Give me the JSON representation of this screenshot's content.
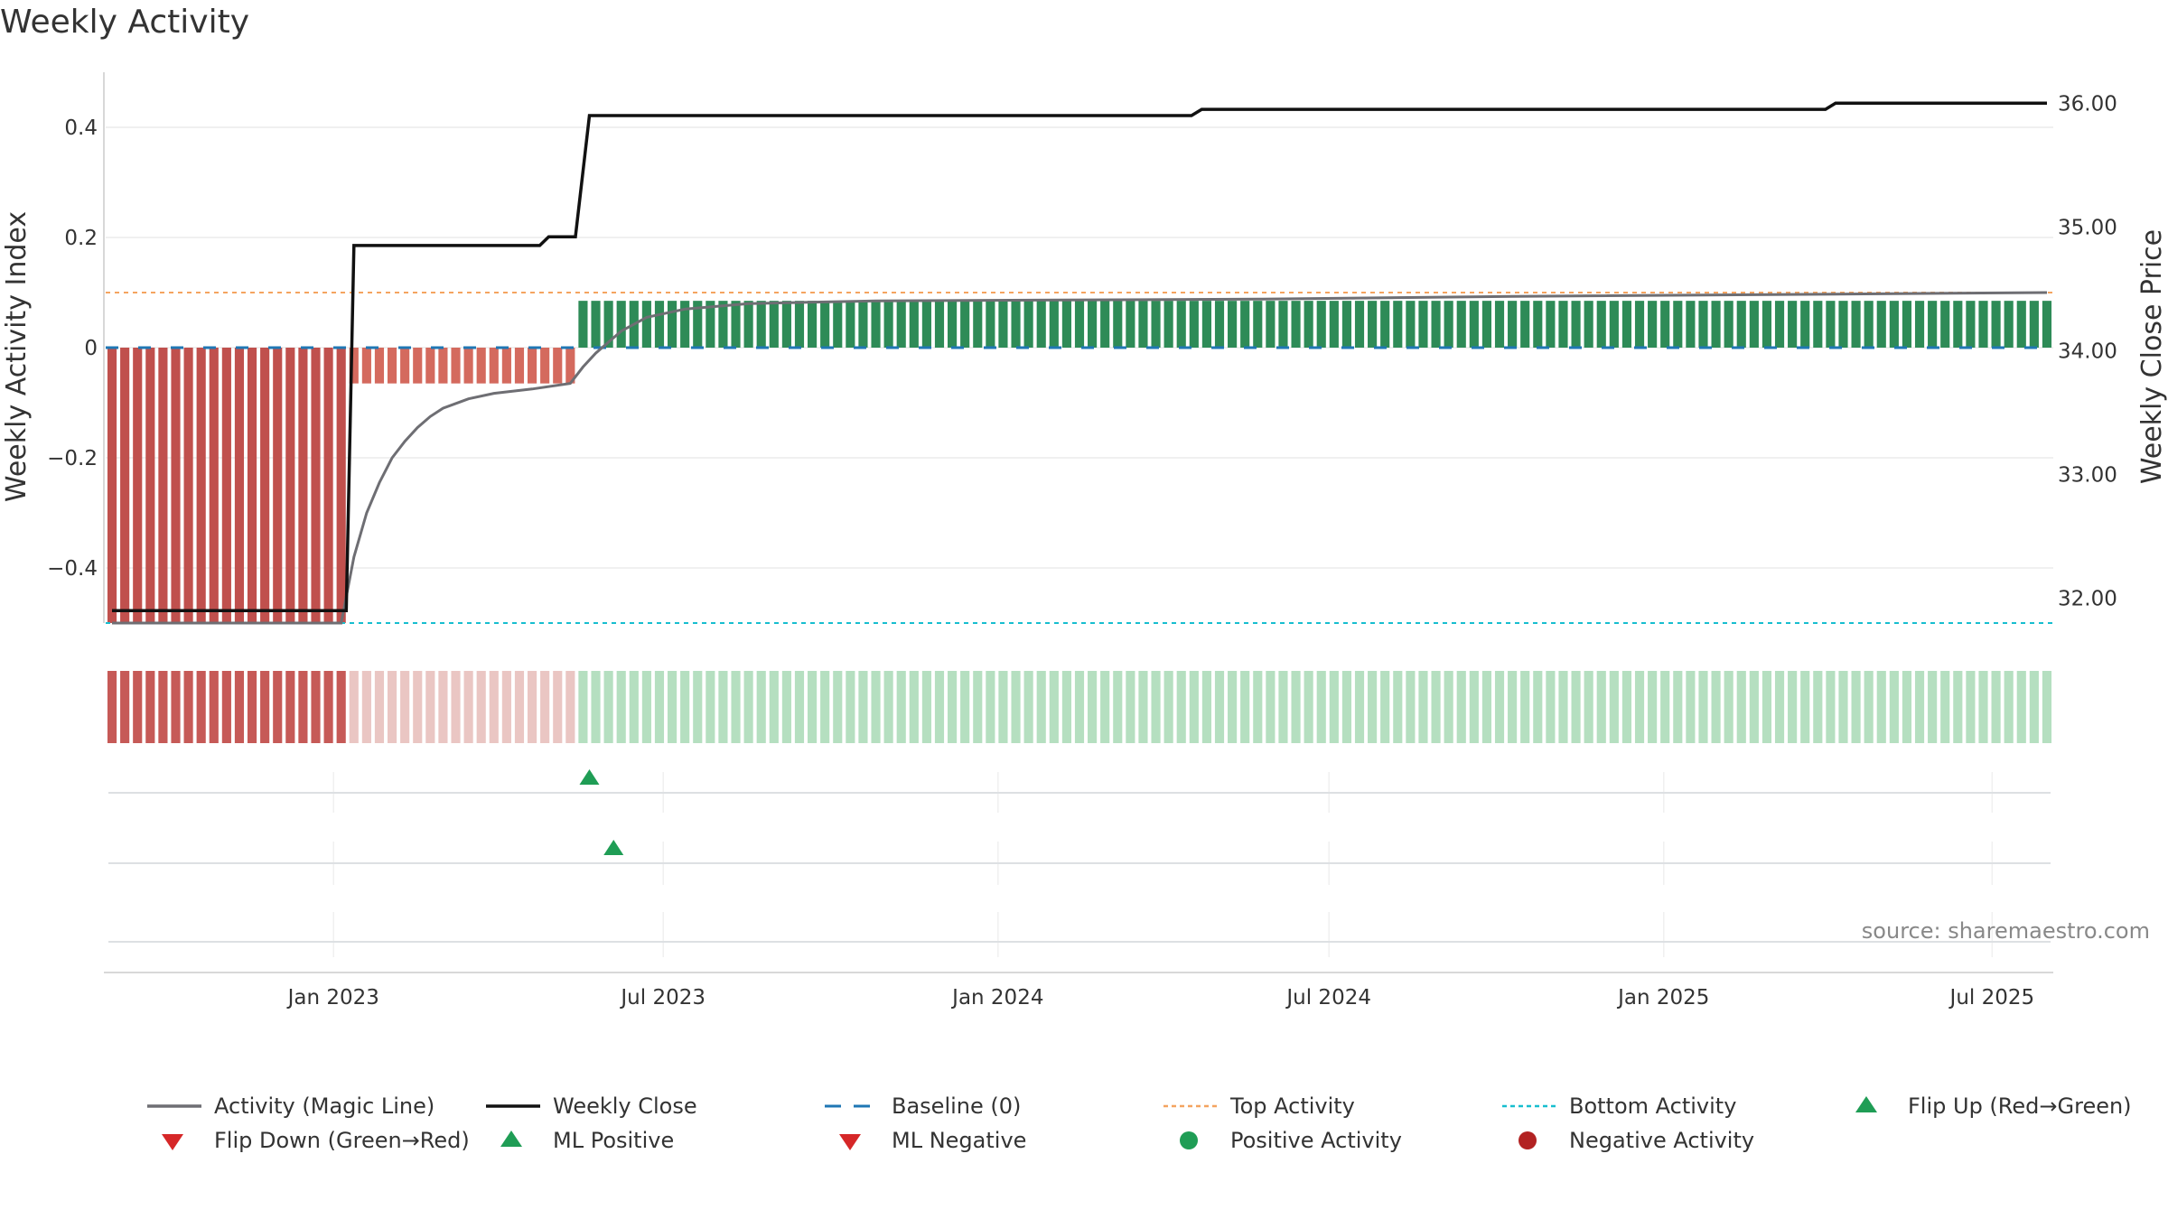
{
  "chart_data": {
    "type": "bar+line",
    "title": "Weekly Activity",
    "ylabel_left": "Weekly Activity Index",
    "ylabel_right": "Weekly Close Price",
    "left_ylim": [
      -0.5,
      0.5
    ],
    "left_ticks": [
      {
        "value": 0.4,
        "label": "0.4"
      },
      {
        "value": 0.2,
        "label": "0.2"
      },
      {
        "value": 0,
        "label": "0"
      },
      {
        "value": -0.2,
        "label": "−0.2"
      },
      {
        "value": -0.4,
        "label": "−0.4"
      }
    ],
    "right_ylim": [
      31.8,
      36.25
    ],
    "right_ticks": [
      {
        "value": 36,
        "label": "36.00"
      },
      {
        "value": 35,
        "label": "35.00"
      },
      {
        "value": 34,
        "label": "34.00"
      },
      {
        "value": 33,
        "label": "33.00"
      },
      {
        "value": 32,
        "label": "32.00"
      }
    ],
    "x_start": "2022-09-05",
    "weeks": 153,
    "x_ticks": [
      {
        "label": "Jan 2023",
        "week": 17.4
      },
      {
        "label": "Jul 2023",
        "week": 43.3
      },
      {
        "label": "Jan 2024",
        "week": 69.6
      },
      {
        "label": "Jul 2024",
        "week": 95.6
      },
      {
        "label": "Jan 2025",
        "week": 121.9
      },
      {
        "label": "Jul 2025",
        "week": 147.7
      }
    ],
    "activity_segments": [
      {
        "from_week": 0,
        "to_week": 18,
        "value": -0.5,
        "color": "#c0504d",
        "strip_color": "#c65a57"
      },
      {
        "from_week": 19,
        "to_week": 36,
        "value": -0.065,
        "color": "#d46a5e",
        "strip_color": "#eac6c3"
      },
      {
        "from_week": 37,
        "to_week": 152,
        "value": 0.085,
        "color": "#2e8b57",
        "strip_color": "#b5dfc0"
      }
    ],
    "top_activity": 0.1,
    "bottom_activity": -0.5,
    "baseline": 0,
    "magic_line": [
      {
        "week": 0,
        "value": -0.5
      },
      {
        "week": 18,
        "value": -0.5
      },
      {
        "week": 19,
        "value": -0.38
      },
      {
        "week": 20,
        "value": -0.3
      },
      {
        "week": 21,
        "value": -0.245
      },
      {
        "week": 22,
        "value": -0.2
      },
      {
        "week": 23,
        "value": -0.17
      },
      {
        "week": 24,
        "value": -0.145
      },
      {
        "week": 25,
        "value": -0.125
      },
      {
        "week": 26,
        "value": -0.11
      },
      {
        "week": 28,
        "value": -0.093
      },
      {
        "week": 30,
        "value": -0.083
      },
      {
        "week": 33,
        "value": -0.075
      },
      {
        "week": 36,
        "value": -0.065
      },
      {
        "week": 37,
        "value": -0.035
      },
      {
        "week": 38,
        "value": -0.01
      },
      {
        "week": 39,
        "value": 0.01
      },
      {
        "week": 40,
        "value": 0.03
      },
      {
        "week": 42,
        "value": 0.055
      },
      {
        "week": 45,
        "value": 0.07
      },
      {
        "week": 50,
        "value": 0.08
      },
      {
        "week": 60,
        "value": 0.085
      },
      {
        "week": 90,
        "value": 0.088
      },
      {
        "week": 110,
        "value": 0.093
      },
      {
        "week": 152,
        "value": 0.1
      }
    ],
    "weekly_close": [
      {
        "week": 0,
        "value": 31.9
      },
      {
        "week": 18.4,
        "value": 31.9
      },
      {
        "week": 19,
        "value": 34.85
      },
      {
        "week": 33.6,
        "value": 34.85
      },
      {
        "week": 34.3,
        "value": 34.92
      },
      {
        "week": 36.4,
        "value": 34.92
      },
      {
        "week": 37.5,
        "value": 35.9
      },
      {
        "week": 84.8,
        "value": 35.9
      },
      {
        "week": 85.6,
        "value": 35.95
      },
      {
        "week": 134.6,
        "value": 35.95
      },
      {
        "week": 135.4,
        "value": 36.0
      },
      {
        "week": 152,
        "value": 36.0
      }
    ],
    "flip_up_markers": [
      {
        "week": 37.5
      }
    ],
    "ml_positive_markers": [
      {
        "week": 39.4
      }
    ],
    "legend": [
      {
        "label": "Activity (Magic Line)",
        "kind": "line",
        "color": "#6e6e73"
      },
      {
        "label": "Weekly Close",
        "kind": "line",
        "color": "#111111"
      },
      {
        "label": "Baseline (0)",
        "kind": "dash",
        "color": "#1f77b4"
      },
      {
        "label": "Top Activity",
        "kind": "dot",
        "color": "#f4a460"
      },
      {
        "label": "Bottom Activity",
        "kind": "dot",
        "color": "#17becf"
      },
      {
        "label": "Flip Up (Red→Green)",
        "kind": "tri-up",
        "color": "#1f9d55"
      },
      {
        "label": "Flip Down (Green→Red)",
        "kind": "tri-down",
        "color": "#d62728"
      },
      {
        "label": "ML Positive",
        "kind": "tri-up",
        "color": "#1f9d55"
      },
      {
        "label": "ML Negative",
        "kind": "tri-down",
        "color": "#d62728"
      },
      {
        "label": "Positive Activity",
        "kind": "circle",
        "color": "#1f9d55"
      },
      {
        "label": "Negative Activity",
        "kind": "circle",
        "color": "#b22222"
      }
    ],
    "source": "source: sharemaestro.com"
  }
}
